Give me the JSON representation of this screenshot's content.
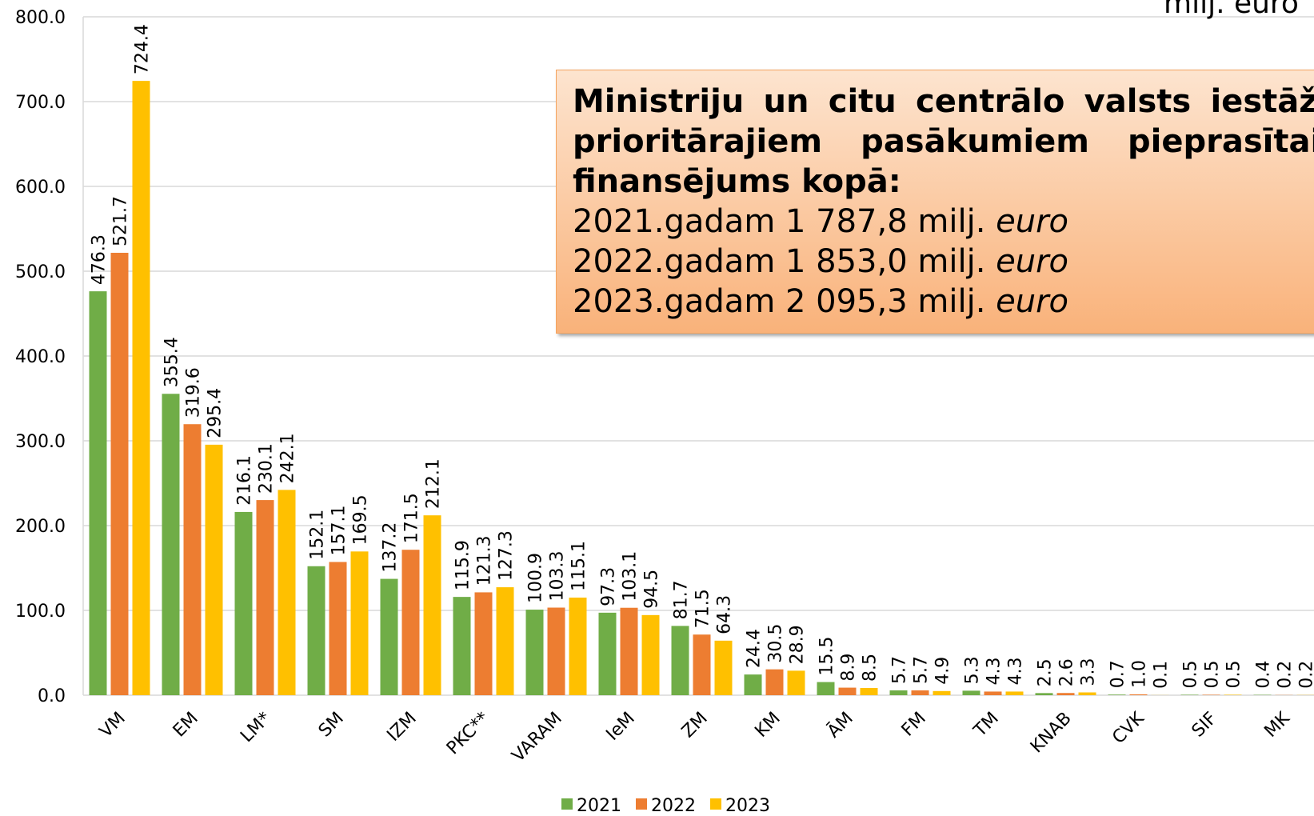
{
  "chart_data": {
    "type": "bar",
    "unit_label": "milj. euro",
    "categories": [
      "VM",
      "EM",
      "LM*",
      "SM",
      "IZM",
      "PKC**",
      "VARAM",
      "IeM",
      "ZM",
      "KM",
      "ĀM",
      "FM",
      "TM",
      "KNAB",
      "CVK",
      "SIF",
      "MK"
    ],
    "series": [
      {
        "name": "2021",
        "color": "#70ad47",
        "values": [
          476.3,
          355.4,
          216.1,
          152.1,
          137.2,
          115.9,
          100.9,
          97.3,
          81.7,
          24.4,
          15.5,
          5.7,
          5.3,
          2.5,
          0.7,
          0.5,
          0.4
        ],
        "value_labels": [
          "476.3",
          "355.4",
          "216.1",
          "152.1",
          "137.2",
          "115.9",
          "100.9",
          "97.3",
          "81.7",
          "24.4",
          "15.5",
          "5.7",
          "5.3",
          "2.5",
          "0.7",
          "0.5",
          "0.4"
        ]
      },
      {
        "name": "2022",
        "color": "#ed7d31",
        "values": [
          521.7,
          319.6,
          230.1,
          157.1,
          171.5,
          121.3,
          103.3,
          103.1,
          71.5,
          30.5,
          8.9,
          5.7,
          4.3,
          2.6,
          1.0,
          0.5,
          0.2
        ],
        "value_labels": [
          "521.7",
          "319.6",
          "230.1",
          "157.1",
          "171.5",
          "121.3",
          "103.3",
          "103.1",
          "71.5",
          "30.5",
          "8.9",
          "5.7",
          "4.3",
          "2.6",
          "1.0",
          "0.5",
          "0.2"
        ]
      },
      {
        "name": "2023",
        "color": "#ffc000",
        "values": [
          724.4,
          295.4,
          242.1,
          169.5,
          212.1,
          127.3,
          115.1,
          94.5,
          64.3,
          28.9,
          8.5,
          4.9,
          4.3,
          3.3,
          0.1,
          0.5,
          0.2
        ],
        "value_labels": [
          "724.4",
          "295.4",
          "242.1",
          "169.5",
          "212.1",
          "127.3",
          "115.1",
          "94.5",
          "64.3",
          "28.9",
          "8.5",
          "4.9",
          "4.3",
          "3.3",
          "0.1",
          "0.5",
          "0.2"
        ]
      }
    ],
    "ylim": [
      0,
      800
    ],
    "yticks": [
      {
        "value": 0,
        "label": "0.0"
      },
      {
        "value": 100,
        "label": "100.0"
      },
      {
        "value": 200,
        "label": "200.0"
      },
      {
        "value": 300,
        "label": "300.0"
      },
      {
        "value": 400,
        "label": "400.0"
      },
      {
        "value": 500,
        "label": "500.0"
      },
      {
        "value": 600,
        "label": "600.0"
      },
      {
        "value": 700,
        "label": "700.0"
      },
      {
        "value": 800,
        "label": "800.0"
      }
    ],
    "grid": true,
    "legend": "bottom",
    "annotation": {
      "heading": "Ministriju un citu centrālo valsts iestāžu prioritārajiem pasākumiem pieprasītais finansējums kopā:",
      "lines": [
        "2021.gadam 1 787,8 milj.",
        "2022.gadam 1 853,0 milj.",
        "2023.gadam 2 095,3 milj."
      ],
      "italic": "euro"
    }
  }
}
